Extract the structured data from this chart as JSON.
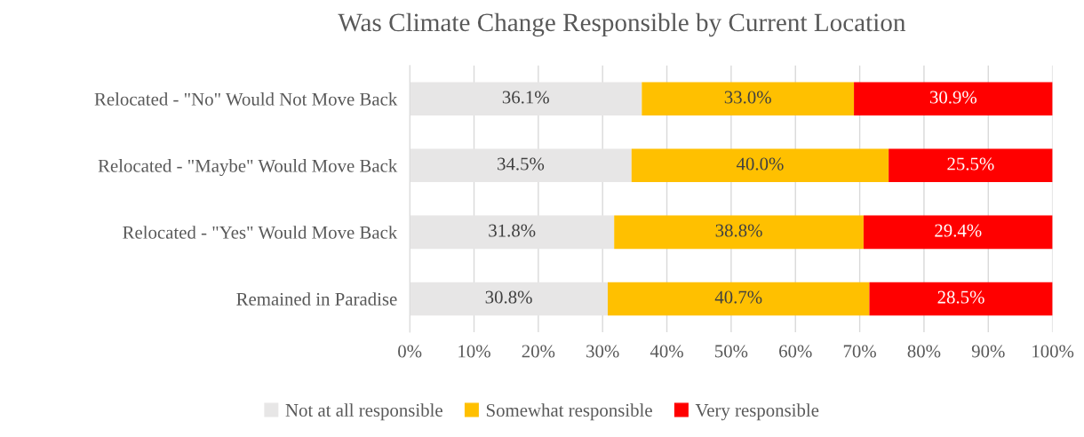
{
  "chart_data": {
    "type": "bar",
    "orientation": "horizontal",
    "stacked": true,
    "title": "Was Climate Change Responsible by Current Location",
    "categories": [
      "Relocated - \"No\" Would Not Move Back",
      "Relocated - \"Maybe\" Would Move Back",
      "Relocated - \"Yes\" Would Move Back",
      "Remained in Paradise"
    ],
    "series": [
      {
        "name": "Not at all responsible",
        "color": "#e7e6e6",
        "values": [
          36.1,
          34.5,
          31.8,
          30.8
        ],
        "value_labels": [
          "36.1%",
          "34.5%",
          "31.8%",
          "30.8%"
        ]
      },
      {
        "name": "Somewhat responsible",
        "color": "#ffc000",
        "values": [
          33.0,
          40.0,
          38.8,
          40.7
        ],
        "value_labels": [
          "33.0%",
          "40.0%",
          "38.8%",
          "40.7%"
        ]
      },
      {
        "name": "Very responsible",
        "color": "#ff0000",
        "values": [
          30.9,
          25.5,
          29.4,
          28.5
        ],
        "value_labels": [
          "30.9%",
          "25.5%",
          "29.4%",
          "28.5%"
        ]
      }
    ],
    "xlim": [
      0,
      100
    ],
    "xticks": [
      {
        "value": 0,
        "label": "0%"
      },
      {
        "value": 10,
        "label": "10%"
      },
      {
        "value": 20,
        "label": "20%"
      },
      {
        "value": 30,
        "label": "30%"
      },
      {
        "value": 40,
        "label": "40%"
      },
      {
        "value": 50,
        "label": "50%"
      },
      {
        "value": 60,
        "label": "60%"
      },
      {
        "value": 70,
        "label": "70%"
      },
      {
        "value": 80,
        "label": "80%"
      },
      {
        "value": 90,
        "label": "90%"
      },
      {
        "value": 100,
        "label": "100%"
      }
    ],
    "grid": "x",
    "legend": "bottom"
  }
}
